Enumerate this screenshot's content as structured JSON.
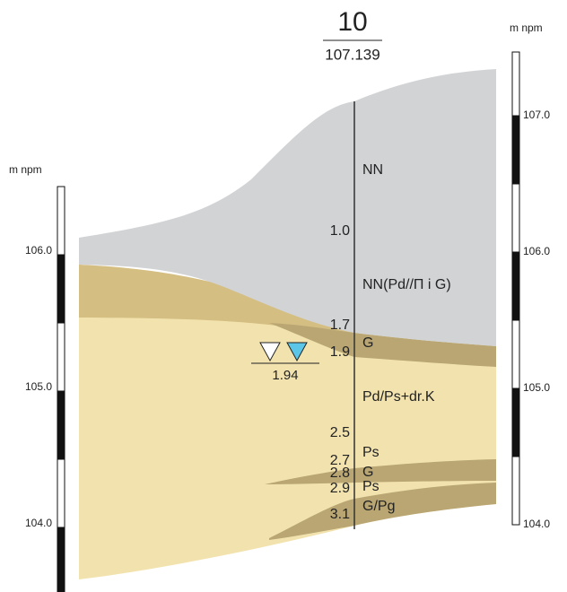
{
  "borehole": {
    "number": "10",
    "elevation": "107.139"
  },
  "left_scale": {
    "unit": "m npm",
    "labels": [
      "106.0",
      "105.0",
      "104.0"
    ]
  },
  "right_scale": {
    "unit": "m npm",
    "labels": [
      "107.0",
      "106.0",
      "105.0",
      "104.0"
    ]
  },
  "depths": [
    "1.0",
    "1.7",
    "1.9",
    "2.5",
    "2.7",
    "2.8",
    "2.9",
    "3.1"
  ],
  "layers": [
    "NN",
    "NN(Pd//Π i G)",
    "G",
    "Pd/Ps+dr.K",
    "Ps",
    "G",
    "Ps",
    "G/Pg"
  ],
  "water_level": "1.94"
}
